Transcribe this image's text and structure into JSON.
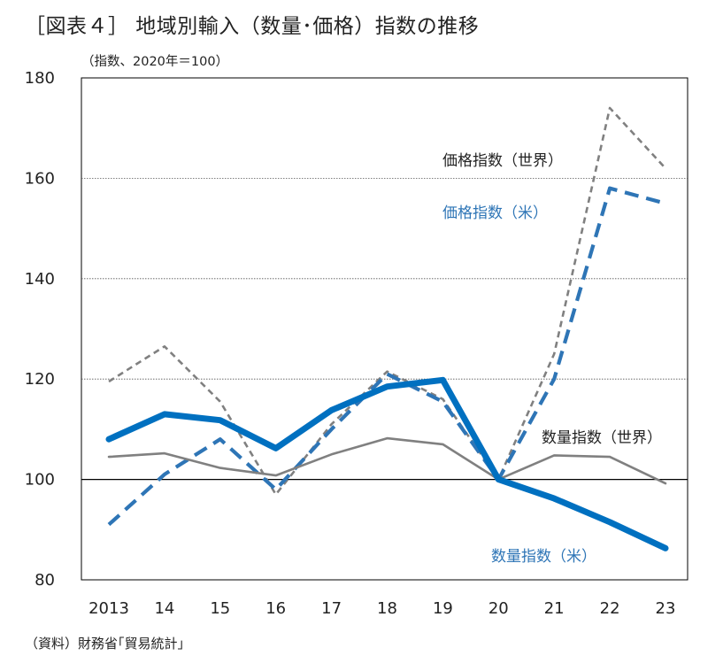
{
  "title": "［図表４］ 地域別輸入（数量･価格）指数の推移",
  "subtitle": "（指数、2020年＝100）",
  "source": "（資料）財務省｢貿易統計｣",
  "chart_data": {
    "type": "line",
    "x": [
      "2013",
      "14",
      "15",
      "16",
      "17",
      "18",
      "19",
      "20",
      "21",
      "22",
      "23"
    ],
    "ylim": [
      80,
      180
    ],
    "yticks": [
      80,
      100,
      120,
      140,
      160,
      180
    ],
    "grid": true,
    "series": [
      {
        "name": "価格指数（世界）",
        "color": "#808080",
        "style": "dashed-thin",
        "values": [
          119.5,
          126.5,
          115.5,
          97,
          111,
          121.5,
          116,
          100,
          125,
          174,
          162
        ]
      },
      {
        "name": "価格指数（米）",
        "color": "#2e75b6",
        "style": "dashed-thick",
        "values": [
          91,
          101,
          108,
          98,
          110,
          121,
          115.5,
          100,
          120,
          158,
          155
        ]
      },
      {
        "name": "数量指数（世界）",
        "color": "#808080",
        "style": "solid-thin",
        "values": [
          104.5,
          105.2,
          102.3,
          100.8,
          105,
          108.2,
          107,
          100,
          104.8,
          104.5,
          99.2
        ]
      },
      {
        "name": "数量指数（米）",
        "color": "#0070c0",
        "style": "solid-thick",
        "values": [
          108,
          113,
          111.8,
          106.2,
          113.8,
          118.5,
          119.8,
          100,
          96.2,
          91.5,
          86.3
        ]
      }
    ]
  }
}
